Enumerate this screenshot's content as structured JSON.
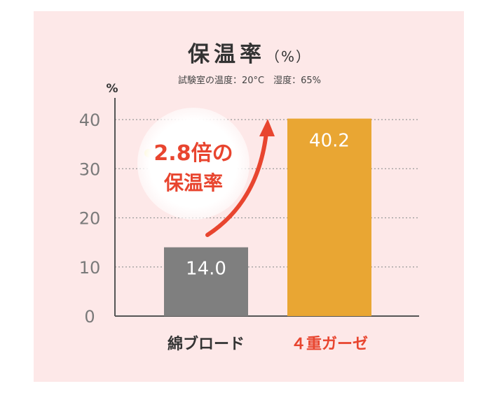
{
  "title": "保温率",
  "title_unit": "（%）",
  "subtitle": "試験室の温度：20°C　湿度：65%",
  "callout": {
    "line1": "2.8倍の",
    "line2": "保温率"
  },
  "colors": {
    "background_panel": "#fde8e8",
    "bar_1": "#7f7f7f",
    "bar_2": "#e9a633",
    "accent_red": "#e8452f",
    "axis": "#555555"
  },
  "chart_data": {
    "type": "bar",
    "ylabel": "%",
    "ylim": [
      0,
      40
    ],
    "yticks": [
      0,
      10,
      20,
      30,
      40
    ],
    "grid": true,
    "categories": [
      "綿ブロード",
      "４重ガーゼ"
    ],
    "values": [
      14.0,
      40.2
    ],
    "value_labels": [
      "14.0",
      "40.2"
    ],
    "category_colors": [
      "#333333",
      "#e8452f"
    ]
  }
}
